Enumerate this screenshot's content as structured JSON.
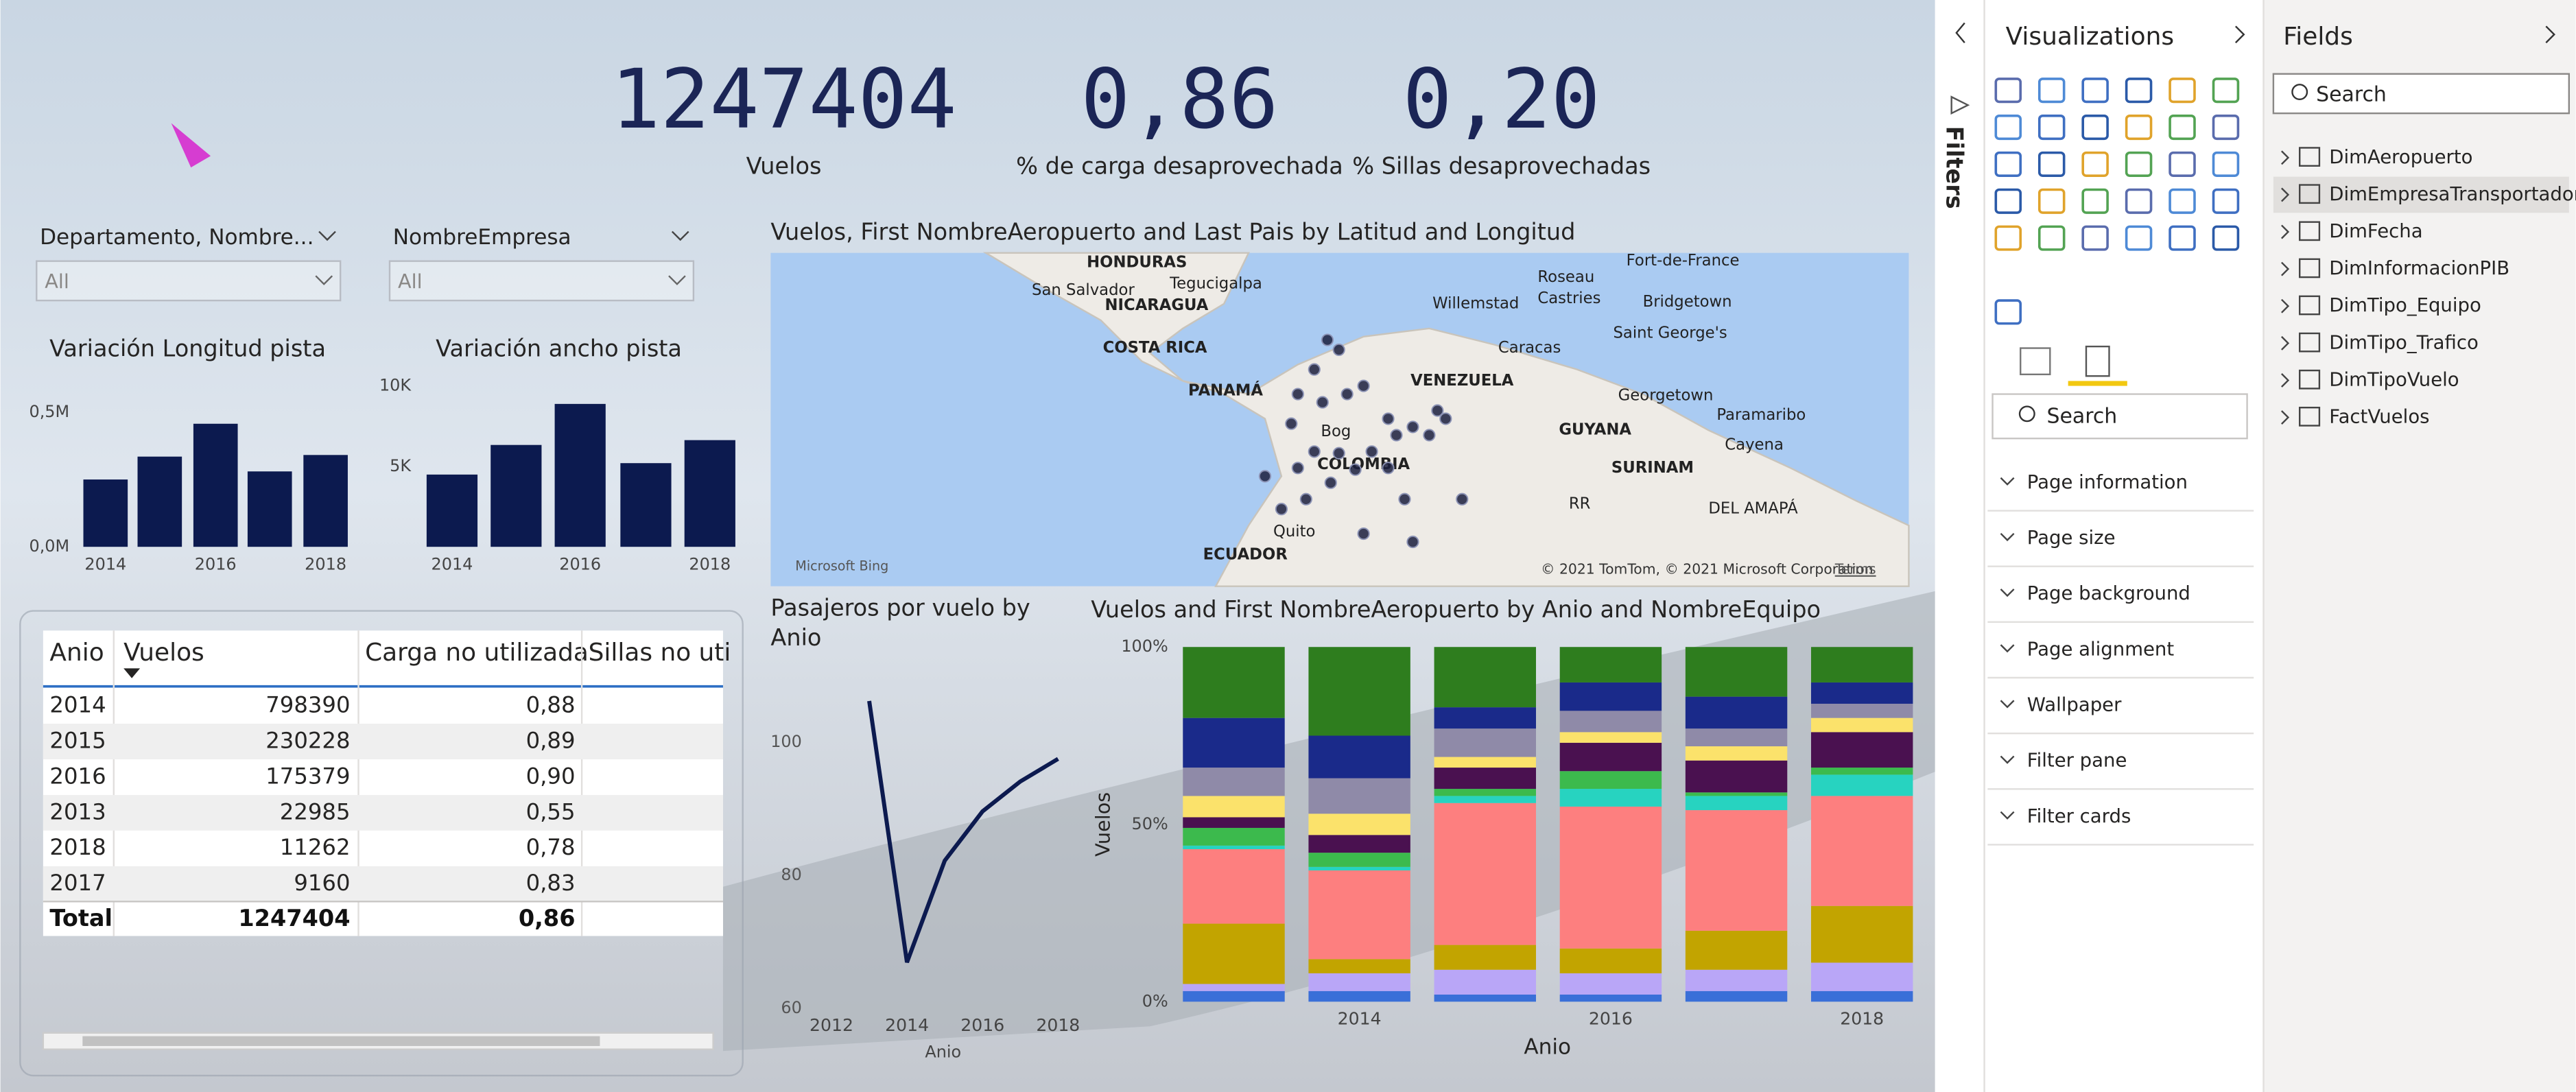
{
  "kpis": [
    {
      "value": "1247404",
      "label": "Vuelos"
    },
    {
      "value": "0,86",
      "label": "% de carga desaprovechada"
    },
    {
      "value": "0,20",
      "label": "% Sillas desaprovechadas"
    }
  ],
  "slicers": [
    {
      "title": "Departamento, Nombre...",
      "value": "All"
    },
    {
      "title": "NombreEmpresa",
      "value": "All"
    }
  ],
  "bar_charts": [
    {
      "type": "bar",
      "title": "Variación Longitud pista",
      "categories": [
        "2014",
        null,
        "2016",
        null,
        "2018"
      ],
      "values": [
        250000,
        335000,
        457000,
        280000,
        341000
      ],
      "color": "#0c1a4f",
      "ylim": [
        0,
        500000
      ],
      "yticks": [
        {
          "value": 0,
          "label": "0,0M"
        },
        {
          "value": 500000,
          "label": "0,5M"
        }
      ]
    },
    {
      "type": "bar",
      "title": "Variación ancho pista",
      "categories": [
        "2014",
        null,
        "2016",
        null,
        "2018"
      ],
      "values": [
        4490,
        6330,
        8880,
        5200,
        6630
      ],
      "color": "#0c1a4f",
      "ylim": [
        0,
        10000
      ],
      "yticks": [
        {
          "value": 5000,
          "label": "5K"
        },
        {
          "value": 10000,
          "label": "10K"
        }
      ]
    }
  ],
  "map": {
    "title": "Vuelos, First NombreAeropuerto and Last Pais by Latitud and Longitud",
    "lonlim": [
      -108.7,
      -39.4
    ],
    "latlim": [
      -4.7,
      15.6
    ],
    "labels": [
      "HONDURAS",
      "Tegucigalpa",
      "San Salvador",
      "NICARAGUA",
      "COSTA RICA",
      "PANAMÁ",
      "Willemstad",
      "Caracas",
      "Roseau",
      "Castries",
      "Fort-de-France",
      "Bridgetown",
      "Saint George's",
      "VENEZUELA",
      "Georgetown",
      "Paramaribo",
      "GUYANA",
      "SURINAM",
      "Cayena",
      "Bog",
      "COLOMBIA",
      "Quito",
      "ECUADOR",
      "RR",
      "DEL AMAPÁ"
    ],
    "attribution": "Microsoft Bing",
    "copyright": "© 2021 TomTom, © 2021 Microsoft Corporation",
    "terms": "Terms",
    "points": [
      {
        "lon": -74.8,
        "lat": 10.3
      },
      {
        "lon": -74.1,
        "lat": 9.7
      },
      {
        "lon": -75.6,
        "lat": 8.5
      },
      {
        "lon": -76.6,
        "lat": 7.0
      },
      {
        "lon": -75.1,
        "lat": 6.5
      },
      {
        "lon": -73.6,
        "lat": 7.0
      },
      {
        "lon": -72.6,
        "lat": 7.5
      },
      {
        "lon": -71.1,
        "lat": 5.5
      },
      {
        "lon": -70.6,
        "lat": 4.5
      },
      {
        "lon": -69.6,
        "lat": 5.0
      },
      {
        "lon": -68.6,
        "lat": 4.5
      },
      {
        "lon": -67.6,
        "lat": 5.5
      },
      {
        "lon": -72.1,
        "lat": 3.5
      },
      {
        "lon": -73.1,
        "lat": 2.4
      },
      {
        "lon": -74.6,
        "lat": 1.6
      },
      {
        "lon": -76.1,
        "lat": 0.6
      },
      {
        "lon": -77.6,
        "lat": 0.0
      },
      {
        "lon": -75.6,
        "lat": 3.5
      },
      {
        "lon": -76.6,
        "lat": 2.5
      },
      {
        "lon": -70.1,
        "lat": 0.6
      },
      {
        "lon": -66.6,
        "lat": 0.6
      },
      {
        "lon": -69.6,
        "lat": -2.0
      },
      {
        "lon": -72.6,
        "lat": -1.5
      },
      {
        "lon": -74.1,
        "lat": 3.4
      },
      {
        "lon": -71.1,
        "lat": 2.5
      },
      {
        "lon": -68.1,
        "lat": 6.0
      },
      {
        "lon": -77.0,
        "lat": 5.2
      },
      {
        "lon": -78.6,
        "lat": 2.0
      }
    ]
  },
  "table": {
    "headers": [
      "Anio",
      "Vuelos",
      "Carga no utilizada",
      "Sillas no uti"
    ],
    "rows": [
      [
        "2014",
        "798390",
        "0,88"
      ],
      [
        "2015",
        "230228",
        "0,89"
      ],
      [
        "2016",
        "175379",
        "0,90"
      ],
      [
        "2013",
        "22985",
        "0,55"
      ],
      [
        "2018",
        "11262",
        "0,78"
      ],
      [
        "2017",
        "9160",
        "0,83"
      ]
    ],
    "total": [
      "Total",
      "1247404",
      "0,86"
    ]
  },
  "line_chart": {
    "type": "line",
    "title": "Pasajeros por vuelo by Anio",
    "x_label": "Anio",
    "x": [
      2013,
      2014,
      2015,
      2016,
      2017,
      2018
    ],
    "values": [
      106.2,
      66.9,
      82.2,
      89.6,
      94.1,
      97.5
    ],
    "color": "#0c1a4f",
    "xlim": [
      2011.5,
      2018.5
    ],
    "xticks": [
      2012,
      2014,
      2016,
      2018
    ],
    "ylim": [
      60,
      110
    ],
    "yticks": [
      60,
      80,
      100
    ]
  },
  "stacked_chart": {
    "type": "stacked_bar_100",
    "title": "Vuelos and First NombreAeropuerto by Anio and NombreEquipo",
    "x_label": "Anio",
    "y_label": "Vuelos",
    "categories": [
      null,
      "2014",
      null,
      "2016",
      null,
      "2018"
    ],
    "ylim": [
      0,
      100
    ],
    "yticks": [
      {
        "value": 0,
        "label": "0%"
      },
      {
        "value": 50,
        "label": "50%"
      },
      {
        "value": 100,
        "label": "100%"
      }
    ],
    "series": [
      {
        "color": "#3a6fd8",
        "values": [
          3,
          3,
          2,
          2,
          3,
          3
        ]
      },
      {
        "color": "#b9a6f7",
        "values": [
          2,
          5,
          7,
          6,
          6,
          8
        ]
      },
      {
        "color": "#c2a400",
        "values": [
          17,
          4,
          7,
          7,
          11,
          16
        ]
      },
      {
        "color": "#fd7f7f",
        "values": [
          21,
          25,
          40,
          40,
          34,
          31
        ]
      },
      {
        "color": "#27d3c0",
        "values": [
          1,
          1,
          2,
          5,
          4,
          6
        ]
      },
      {
        "color": "#3cba4d",
        "values": [
          5,
          4,
          2,
          5,
          1,
          2
        ]
      },
      {
        "color": "#4a1150",
        "values": [
          3,
          5,
          6,
          8,
          9,
          10
        ]
      },
      {
        "color": "#fbe26b",
        "values": [
          6,
          6,
          3,
          3,
          4,
          4
        ]
      },
      {
        "color": "#8f8aa8",
        "values": [
          8,
          10,
          8,
          6,
          5,
          4
        ]
      },
      {
        "color": "#1a2a8a",
        "values": [
          14,
          12,
          6,
          8,
          9,
          6
        ]
      },
      {
        "color": "#2e7d1e",
        "values": [
          20,
          25,
          17,
          10,
          14,
          10
        ]
      }
    ]
  },
  "filters_pane": {
    "label": "Filters"
  },
  "visualizations": {
    "title": "Visualizations",
    "search": "Search",
    "sections": [
      "Page information",
      "Page size",
      "Page background",
      "Page alignment",
      "Wallpaper",
      "Filter pane",
      "Filter cards"
    ]
  },
  "fields": {
    "title": "Fields",
    "search": "Search",
    "tables": [
      "DimAeropuerto",
      "DimEmpresaTransportadora",
      "DimFecha",
      "DimInformacionPIB",
      "DimTipo_Equipo",
      "DimTipo_Trafico",
      "DimTipoVuelo",
      "FactVuelos"
    ]
  }
}
